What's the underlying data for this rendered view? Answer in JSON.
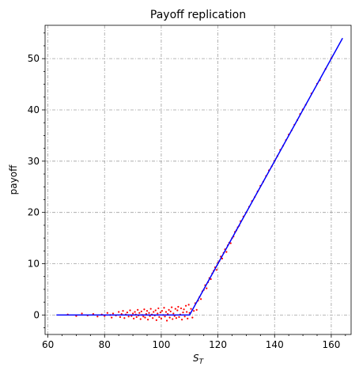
{
  "chart_data": {
    "type": "scatter",
    "title": "Payoff replication",
    "xlabel": "S",
    "xlabel_sub": "T",
    "ylabel": "payoff",
    "xlim": [
      59,
      167
    ],
    "ylim": [
      -3.8,
      56.5
    ],
    "xticks": [
      60,
      80,
      100,
      120,
      140,
      160
    ],
    "yticks": [
      0,
      10,
      20,
      30,
      40,
      50
    ],
    "grid": true,
    "strike": 110,
    "series": [
      {
        "kind": "scatter",
        "color": "#ff0000",
        "marker": "small dots",
        "x": [
          67,
          70,
          72,
          74,
          76,
          77.5,
          79,
          80,
          81,
          82,
          82.5,
          83,
          84,
          85,
          85.5,
          86,
          86.5,
          87,
          87.5,
          88,
          88.5,
          89,
          89.5,
          90,
          90.3,
          90.7,
          91,
          91.3,
          91.7,
          92,
          92.3,
          92.7,
          93,
          93.3,
          93.7,
          94,
          94.3,
          94.7,
          95,
          95.3,
          95.7,
          96,
          96.3,
          96.7,
          97,
          97.3,
          97.7,
          98,
          98.3,
          98.7,
          99,
          99.3,
          99.7,
          100,
          100.3,
          100.7,
          101,
          101.3,
          101.7,
          102,
          102.3,
          102.7,
          103,
          103.3,
          103.7,
          104,
          104.3,
          104.7,
          105,
          105.3,
          105.7,
          106,
          106.3,
          106.7,
          107,
          107.3,
          107.7,
          108,
          108.3,
          108.7,
          109,
          109.3,
          109.7,
          110,
          110.5,
          111,
          111.5,
          112,
          112.5,
          113,
          113.5,
          114,
          114.5,
          115,
          115.5,
          116,
          116.5,
          117,
          117.5,
          118,
          118.5,
          119,
          119.5,
          120,
          120.5,
          121,
          121.5,
          122,
          122.5,
          123,
          123.5,
          124,
          124.5,
          125,
          125.5,
          126,
          126.5,
          127,
          127.5,
          128,
          129,
          130,
          131,
          132,
          133,
          134,
          135,
          136,
          137,
          138,
          139,
          140,
          141,
          142,
          143,
          144,
          145,
          146,
          147,
          148,
          149,
          150,
          151,
          153,
          155,
          156,
          158,
          160
        ],
        "y": [
          0.1,
          -0.2,
          0.3,
          -0.1,
          0.2,
          -0.3,
          0.1,
          -0.2,
          0.4,
          0.0,
          -0.5,
          0.3,
          -0.1,
          0.6,
          -0.4,
          0.2,
          0.8,
          -0.6,
          0.1,
          0.5,
          -0.3,
          0.9,
          -0.2,
          0.3,
          -0.7,
          0.6,
          0.1,
          -0.4,
          1.0,
          -0.1,
          0.4,
          -0.8,
          0.7,
          0.0,
          -0.3,
          1.1,
          -0.5,
          0.2,
          0.8,
          -0.9,
          0.4,
          -0.2,
          1.2,
          0.1,
          -0.6,
          0.6,
          -0.1,
          0.9,
          -1.0,
          0.3,
          1.3,
          -0.4,
          0.5,
          -0.7,
          0.8,
          0.0,
          1.4,
          -0.3,
          0.6,
          -1.1,
          0.2,
          1.0,
          -0.5,
          0.7,
          1.5,
          -0.8,
          0.3,
          -0.2,
          1.2,
          -0.6,
          0.9,
          1.6,
          -0.4,
          0.1,
          1.3,
          -0.9,
          0.5,
          1.1,
          -0.3,
          1.8,
          0.6,
          -0.7,
          2.0,
          0.4,
          1.2,
          -0.5,
          0.8,
          2.3,
          1.0,
          2.8,
          3.5,
          3.1,
          4.6,
          4.9,
          5.8,
          5.2,
          6.4,
          7.2,
          7.0,
          8.1,
          8.6,
          9.3,
          8.8,
          10.2,
          10.5,
          11.4,
          11.0,
          12.1,
          12.8,
          12.3,
          13.6,
          14.1,
          14.0,
          15.0,
          15.3,
          16.2,
          16.5,
          17.1,
          17.4,
          18.3,
          19.2,
          20.0,
          21.1,
          22.2,
          23.0,
          24.1,
          25.2,
          26.0,
          27.1,
          28.2,
          29.0,
          30.1,
          31.0,
          32.2,
          33.0,
          34.1,
          35.2,
          36.0,
          37.1,
          38.0,
          39.2,
          40.1,
          41.0,
          43.2,
          45.1,
          45.8,
          48.0,
          50.1
        ]
      },
      {
        "kind": "line",
        "color": "#0000ff",
        "x": [
          63,
          110,
          164
        ],
        "y": [
          0,
          0,
          54
        ]
      }
    ]
  }
}
